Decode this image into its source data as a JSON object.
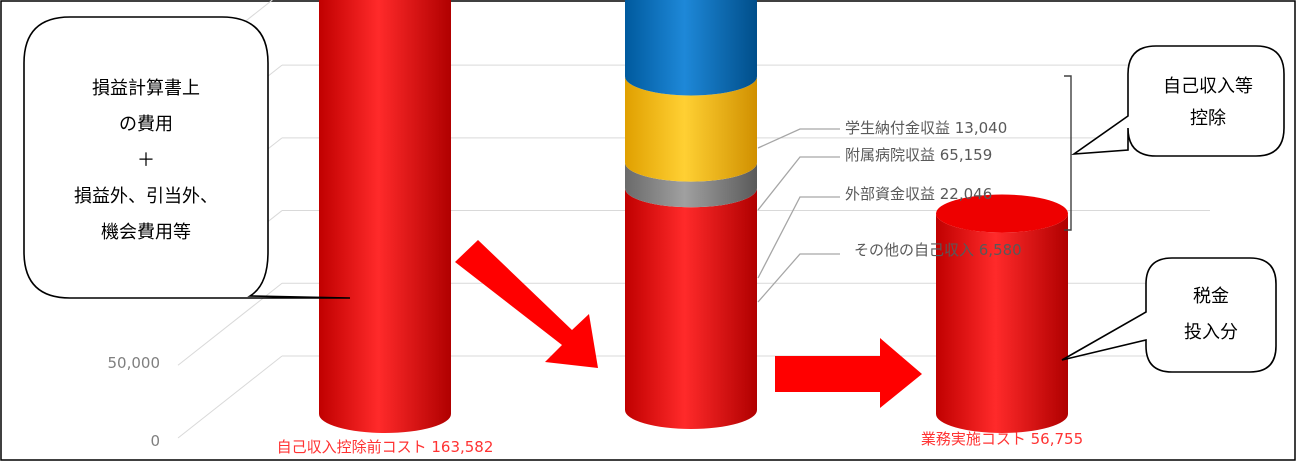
{
  "chart_data": {
    "type": "bar",
    "categories": [
      "自己収入控除前コスト 163,582",
      "",
      "業務実施コスト 56,755"
    ],
    "y_ticks": [
      "0",
      "50,000"
    ],
    "ylim": [
      0,
      180000
    ],
    "series": [
      {
        "values": [
          163582,
          56755,
          56755
        ]
      },
      {
        "values": [
          0,
          6580,
          0
        ]
      },
      {
        "values": [
          0,
          22046,
          0
        ]
      },
      {
        "values": [
          0,
          65159,
          0
        ]
      },
      {
        "values": [
          0,
          13040,
          0
        ]
      }
    ],
    "segment_labels": [
      "その他の自己収入 6,580",
      "外部資金収益 22,046",
      "附属病院収益 65,159",
      "学生納付金収益 13,040"
    ],
    "colors": {
      "cost": "#ee0000",
      "other_income": "#808080",
      "external_funds": "#ffc000",
      "hospital": "#0070c0",
      "tuition": "#70ad47",
      "arrow": "#ff0000",
      "cost_label": "#ff3333",
      "grid": "#d9d9d9",
      "axis_text": "#7f7f7f"
    },
    "callouts": {
      "left_lines": [
        "損益計算書上",
        "の費用",
        "＋",
        "損益外、引当外、",
        "機会費用等"
      ],
      "top_right_lines": [
        "自己収入等",
        "控除"
      ],
      "bottom_right_lines": [
        "税金",
        "投入分"
      ]
    }
  }
}
